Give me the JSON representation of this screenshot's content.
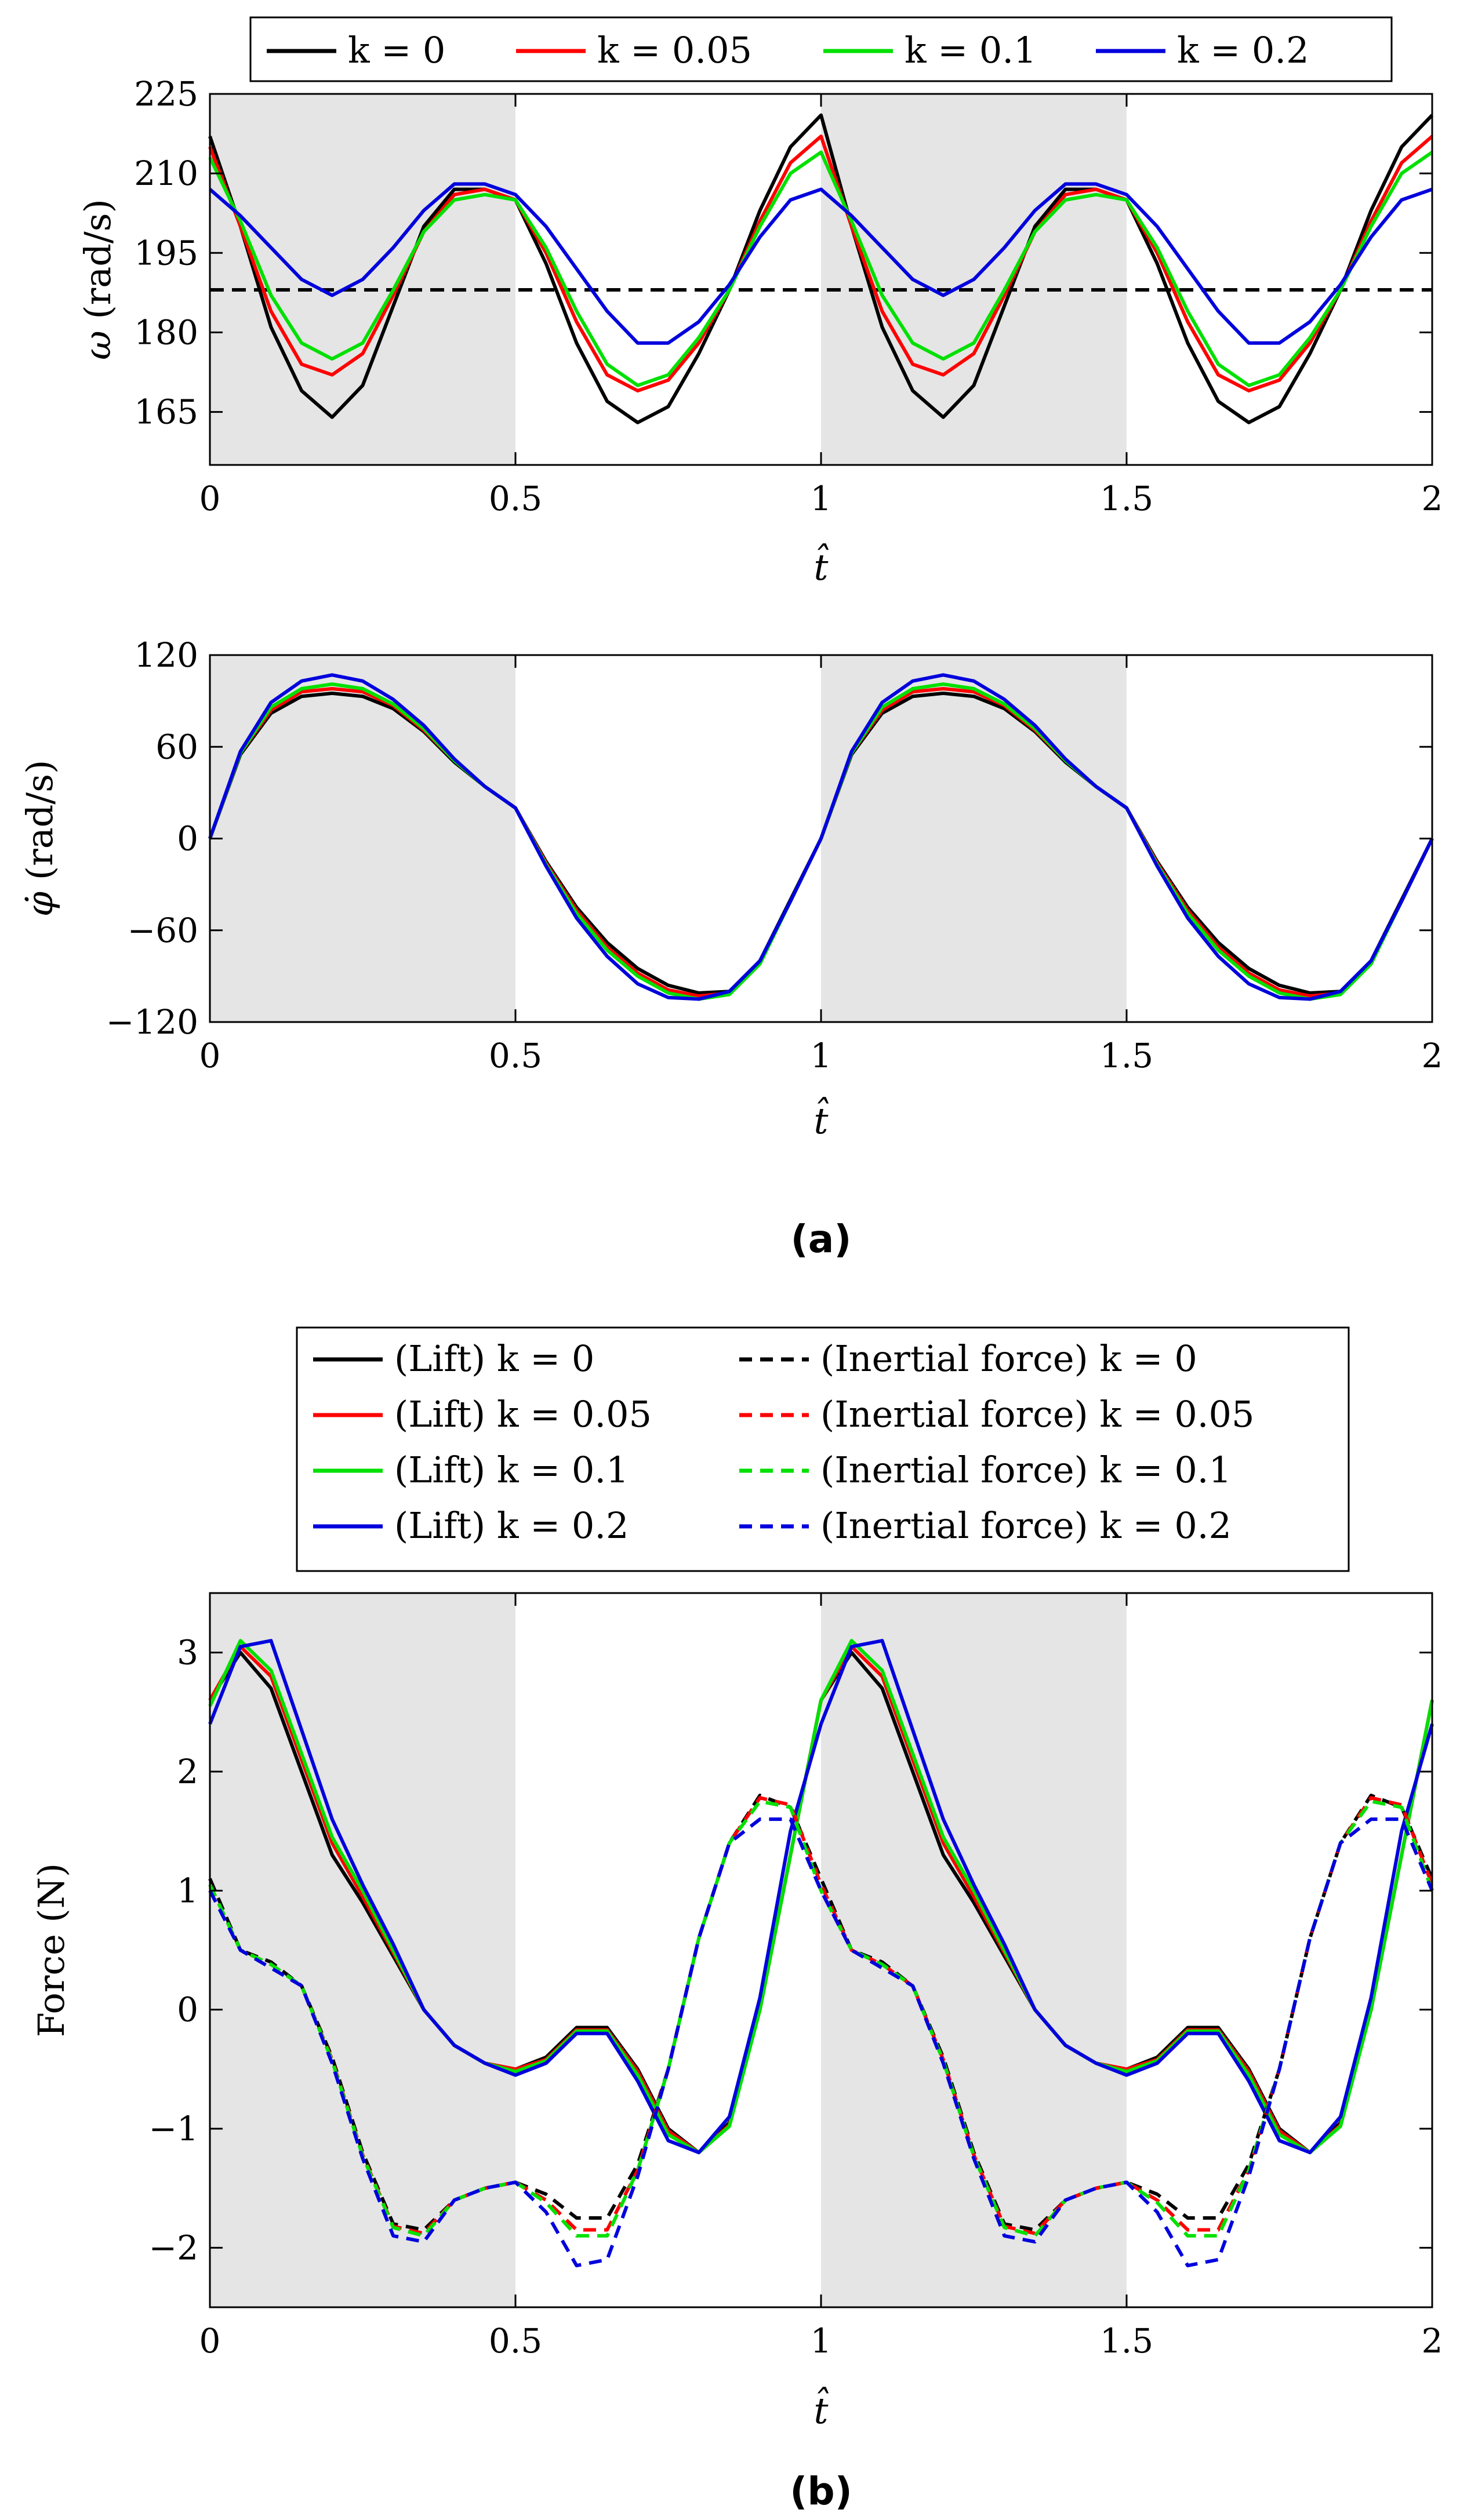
{
  "colors": {
    "k0": "#000000",
    "k005": "#ff0000",
    "k01": "#00e000",
    "k02": "#0000dd",
    "shade": "#e5e5e5"
  },
  "captions": {
    "a": "(a)",
    "b": "(b)"
  },
  "legend_top": [
    "k = 0",
    "k = 0.05",
    "k = 0.1",
    "k = 0.2"
  ],
  "legend_bottom": {
    "lift": [
      "(Lift) k = 0",
      "(Lift) k = 0.05",
      "(Lift) k = 0.1",
      "(Lift) k = 0.2"
    ],
    "inertial": [
      "(Inertial force) k = 0",
      "(Inertial force) k = 0.05",
      "(Inertial force) k = 0.1",
      "(Inertial force) k = 0.2"
    ]
  },
  "chart_data": [
    {
      "type": "line",
      "title": "",
      "xlabel": "t̂",
      "ylabel": "ω (rad/s)",
      "xlim": [
        0,
        2
      ],
      "ylim": [
        155,
        225
      ],
      "xticks": [
        "0",
        "0.5",
        "1",
        "1.5",
        "2"
      ],
      "yticks": [
        "165",
        "180",
        "195",
        "210",
        "225"
      ],
      "shaded_x": [
        [
          0,
          0.5
        ],
        [
          1,
          1.5
        ]
      ],
      "reference_line": {
        "y": 188,
        "style": "dashed",
        "color": "#000000"
      },
      "x": [
        0,
        0.05,
        0.1,
        0.15,
        0.2,
        0.25,
        0.3,
        0.35,
        0.4,
        0.45,
        0.5,
        0.55,
        0.6,
        0.65,
        0.7,
        0.75,
        0.8,
        0.85,
        0.9,
        0.95,
        1.0
      ],
      "series": [
        {
          "name": "k = 0",
          "values": [
            217,
            200,
            181,
            169,
            164,
            170,
            185,
            200,
            207,
            207,
            205,
            193,
            178,
            167,
            163,
            166,
            176,
            188,
            203,
            215,
            221
          ]
        },
        {
          "name": "k = 0.05",
          "values": [
            215,
            200,
            184,
            174,
            172,
            176,
            187,
            199,
            206,
            207,
            205,
            195,
            182,
            172,
            169,
            171,
            178,
            188,
            201,
            212,
            217
          ]
        },
        {
          "name": "k = 0.1",
          "values": [
            213,
            201,
            187,
            178,
            175,
            178,
            188,
            199,
            205,
            206,
            205,
            196,
            184,
            174,
            170,
            172,
            179,
            188,
            200,
            210,
            214
          ]
        },
        {
          "name": "k = 0.2",
          "values": [
            207,
            202,
            196,
            190,
            187,
            190,
            196,
            203,
            208,
            208,
            206,
            200,
            192,
            184,
            178,
            178,
            182,
            189,
            198,
            205,
            207
          ]
        }
      ],
      "period_repeat": true
    },
    {
      "type": "line",
      "title": "",
      "xlabel": "t̂",
      "ylabel": "φ̇ (rad/s)",
      "xlim": [
        0,
        2
      ],
      "ylim": [
        -120,
        120
      ],
      "xticks": [
        "0",
        "0.5",
        "1",
        "1.5",
        "2"
      ],
      "yticks": [
        "-120",
        "-60",
        "0",
        "60",
        "120"
      ],
      "shaded_x": [
        [
          0,
          0.5
        ],
        [
          1,
          1.5
        ]
      ],
      "x": [
        0,
        0.05,
        0.1,
        0.15,
        0.2,
        0.25,
        0.3,
        0.35,
        0.4,
        0.45,
        0.5,
        0.55,
        0.6,
        0.65,
        0.7,
        0.75,
        0.8,
        0.85,
        0.9,
        0.95,
        1.0
      ],
      "series": [
        {
          "name": "k = 0",
          "values": [
            0,
            55,
            82,
            93,
            95,
            93,
            85,
            70,
            50,
            34,
            20,
            -15,
            -45,
            -68,
            -85,
            -96,
            -101,
            -100,
            -80,
            -40,
            0
          ]
        },
        {
          "name": "k = 0.05",
          "values": [
            0,
            56,
            84,
            96,
            98,
            96,
            87,
            71,
            51,
            34,
            20,
            -16,
            -47,
            -71,
            -88,
            -99,
            -103,
            -101,
            -81,
            -41,
            0
          ]
        },
        {
          "name": "k = 0.1",
          "values": [
            0,
            56,
            86,
            98,
            101,
            98,
            88,
            72,
            51,
            34,
            20,
            -17,
            -49,
            -73,
            -90,
            -101,
            -105,
            -102,
            -82,
            -41,
            0
          ]
        },
        {
          "name": "k = 0.2",
          "values": [
            0,
            57,
            89,
            103,
            107,
            103,
            91,
            74,
            52,
            34,
            20,
            -18,
            -52,
            -77,
            -95,
            -104,
            -105,
            -100,
            -80,
            -41,
            0
          ]
        }
      ],
      "period_repeat": true
    },
    {
      "type": "line",
      "title": "",
      "xlabel": "t̂",
      "ylabel": "Force (N)",
      "xlim": [
        0,
        2
      ],
      "ylim": [
        -2.5,
        3.5
      ],
      "xticks": [
        "0",
        "0.5",
        "1",
        "1.5",
        "2"
      ],
      "yticks": [
        "-2",
        "-1",
        "0",
        "1",
        "2",
        "3"
      ],
      "shaded_x": [
        [
          0,
          0.5
        ],
        [
          1,
          1.5
        ]
      ],
      "x": [
        0,
        0.05,
        0.1,
        0.15,
        0.2,
        0.25,
        0.3,
        0.35,
        0.4,
        0.45,
        0.5,
        0.55,
        0.6,
        0.65,
        0.7,
        0.75,
        0.8,
        0.85,
        0.9,
        0.95,
        1.0
      ],
      "series": [
        {
          "name": "(Lift) k = 0",
          "style": "solid",
          "values": [
            2.6,
            3.0,
            2.7,
            2.0,
            1.3,
            0.9,
            0.45,
            0.0,
            -0.3,
            -0.45,
            -0.5,
            -0.4,
            -0.15,
            -0.15,
            -0.5,
            -1.0,
            -1.2,
            -0.95,
            0.0,
            1.3,
            2.6
          ]
        },
        {
          "name": "(Lift) k = 0.05",
          "style": "solid",
          "values": [
            2.6,
            3.05,
            2.8,
            2.1,
            1.4,
            0.95,
            0.48,
            0.0,
            -0.3,
            -0.45,
            -0.5,
            -0.42,
            -0.17,
            -0.17,
            -0.52,
            -1.02,
            -1.2,
            -0.97,
            0.0,
            1.3,
            2.6
          ]
        },
        {
          "name": "(Lift) k = 0.1",
          "style": "solid",
          "values": [
            2.55,
            3.1,
            2.85,
            2.15,
            1.45,
            1.0,
            0.5,
            0.0,
            -0.3,
            -0.45,
            -0.52,
            -0.43,
            -0.18,
            -0.18,
            -0.55,
            -1.05,
            -1.2,
            -0.98,
            0.0,
            1.3,
            2.6
          ]
        },
        {
          "name": "(Lift) k = 0.2",
          "style": "solid",
          "values": [
            2.4,
            3.05,
            3.1,
            2.35,
            1.6,
            1.05,
            0.55,
            0.0,
            -0.3,
            -0.45,
            -0.55,
            -0.45,
            -0.2,
            -0.2,
            -0.6,
            -1.1,
            -1.2,
            -0.9,
            0.1,
            1.5,
            2.4
          ]
        },
        {
          "name": "(Inertial force) k = 0",
          "style": "dashed",
          "values": [
            1.1,
            0.5,
            0.4,
            0.2,
            -0.4,
            -1.2,
            -1.8,
            -1.85,
            -1.6,
            -1.5,
            -1.45,
            -1.55,
            -1.75,
            -1.75,
            -1.3,
            -0.5,
            0.6,
            1.4,
            1.8,
            1.7,
            1.1
          ]
        },
        {
          "name": "(Inertial force) k = 0.05",
          "style": "dashed",
          "values": [
            1.05,
            0.5,
            0.38,
            0.2,
            -0.42,
            -1.22,
            -1.82,
            -1.88,
            -1.6,
            -1.5,
            -1.45,
            -1.6,
            -1.85,
            -1.85,
            -1.35,
            -0.5,
            0.6,
            1.4,
            1.78,
            1.72,
            1.05
          ]
        },
        {
          "name": "(Inertial force) k = 0.1",
          "style": "dashed",
          "values": [
            1.05,
            0.5,
            0.38,
            0.2,
            -0.43,
            -1.23,
            -1.83,
            -1.9,
            -1.6,
            -1.5,
            -1.45,
            -1.62,
            -1.9,
            -1.9,
            -1.35,
            -0.5,
            0.6,
            1.4,
            1.75,
            1.7,
            1.0
          ]
        },
        {
          "name": "(Inertial force) k = 0.2",
          "style": "dashed",
          "values": [
            1.0,
            0.5,
            0.35,
            0.2,
            -0.45,
            -1.25,
            -1.9,
            -1.95,
            -1.6,
            -1.5,
            -1.45,
            -1.7,
            -2.15,
            -2.1,
            -1.4,
            -0.5,
            0.6,
            1.4,
            1.6,
            1.6,
            1.0
          ]
        }
      ],
      "period_repeat": true
    }
  ]
}
